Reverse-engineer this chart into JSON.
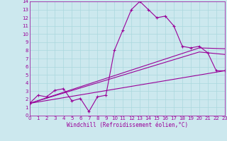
{
  "xlabel": "Windchill (Refroidissement éolien,°C)",
  "background_color": "#cce8ee",
  "line_color": "#990099",
  "xlim": [
    0,
    23
  ],
  "ylim": [
    0,
    14
  ],
  "xticks": [
    0,
    1,
    2,
    3,
    4,
    5,
    6,
    7,
    8,
    9,
    10,
    11,
    12,
    13,
    14,
    15,
    16,
    17,
    18,
    19,
    20,
    21,
    22,
    23
  ],
  "yticks": [
    0,
    1,
    2,
    3,
    4,
    5,
    6,
    7,
    8,
    9,
    10,
    11,
    12,
    13,
    14
  ],
  "grid_color": "#aad8dd",
  "series1_x": [
    0,
    1,
    2,
    3,
    4,
    5,
    6,
    7,
    8,
    9,
    10,
    11,
    12,
    13,
    14,
    15,
    16,
    17,
    18,
    19,
    20,
    21,
    22,
    23
  ],
  "series1_y": [
    1.5,
    2.5,
    2.3,
    3.1,
    3.3,
    1.8,
    2.1,
    0.5,
    2.3,
    2.5,
    8.0,
    10.5,
    13.0,
    14.0,
    13.0,
    12.0,
    12.2,
    11.0,
    8.5,
    8.3,
    8.5,
    7.7,
    5.5,
    5.5
  ],
  "series2_x": [
    0,
    23
  ],
  "series2_y": [
    1.5,
    5.5
  ],
  "series3_x": [
    0,
    20,
    23
  ],
  "series3_y": [
    1.5,
    8.3,
    8.2
  ],
  "series4_x": [
    0,
    20,
    23
  ],
  "series4_y": [
    1.5,
    7.8,
    7.5
  ],
  "xlabel_fontsize": 5.5,
  "tick_fontsize": 5
}
